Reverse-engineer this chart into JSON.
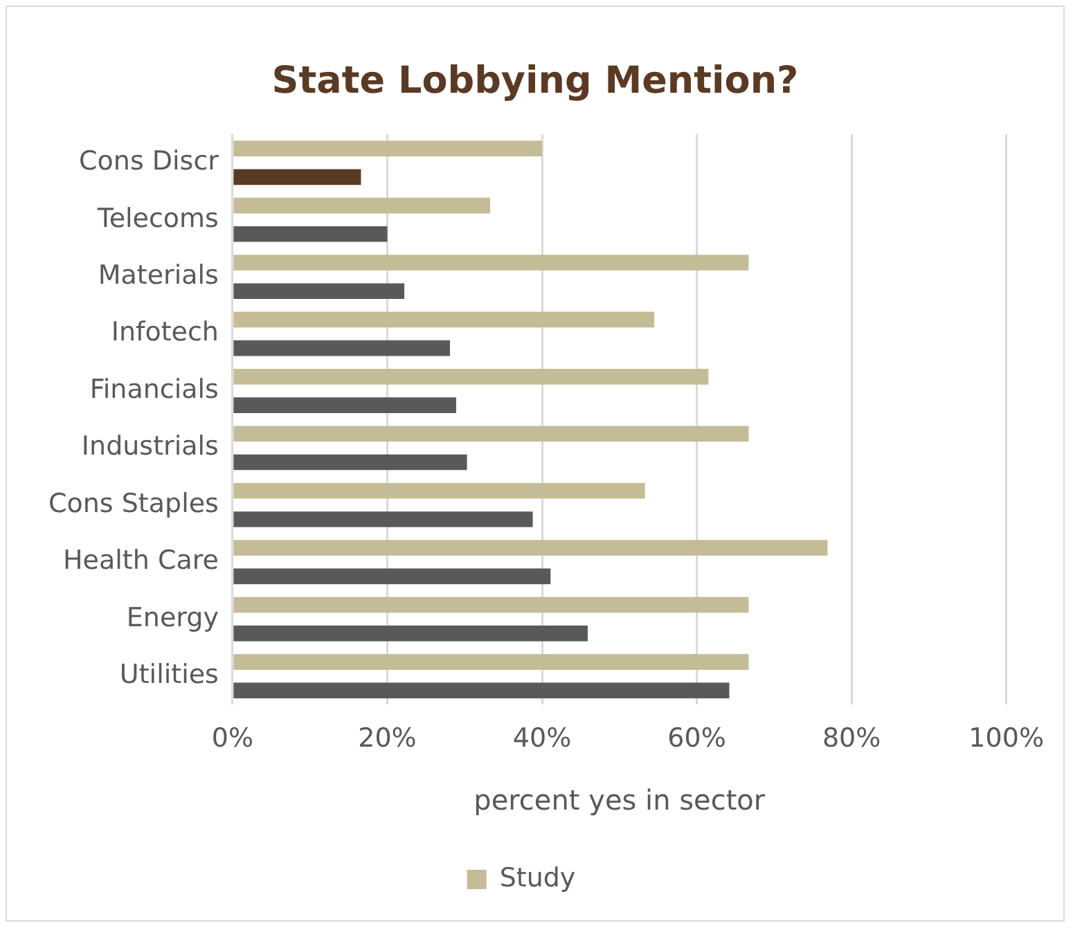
{
  "chart_data": {
    "type": "bar",
    "orientation": "horizontal",
    "title": "State Lobbying Mention?",
    "xlabel": "percent yes in sector",
    "categories": [
      "Cons Discr",
      "Telecoms",
      "Materials",
      "Infotech",
      "Financials",
      "Industrials",
      "Cons Staples",
      "Health Care",
      "Energy",
      "Utilities"
    ],
    "series": [
      {
        "name": "Study",
        "color": "#c4bc96",
        "values": [
          40,
          33.3,
          66.7,
          54.5,
          61.5,
          66.7,
          53.3,
          76.9,
          66.7,
          66.7
        ]
      },
      {
        "color": "#595959",
        "colors": [
          "#5b3a24",
          "#595959",
          "#595959",
          "#595959",
          "#595959",
          "#595959",
          "#595959",
          "#595959",
          "#595959",
          "#595959"
        ],
        "values": [
          16.6,
          20,
          22.2,
          28.1,
          28.9,
          30.3,
          38.8,
          41.1,
          45.9,
          64.2
        ]
      }
    ],
    "xlim": [
      0,
      100
    ],
    "xticks": [
      {
        "value": 0,
        "label": "0%"
      },
      {
        "value": 20,
        "label": "20%"
      },
      {
        "value": 40,
        "label": "40%"
      },
      {
        "value": 60,
        "label": "60%"
      },
      {
        "value": 80,
        "label": "80%"
      },
      {
        "value": 100,
        "label": "100%"
      }
    ],
    "grid": "x",
    "legend": "bottom"
  }
}
